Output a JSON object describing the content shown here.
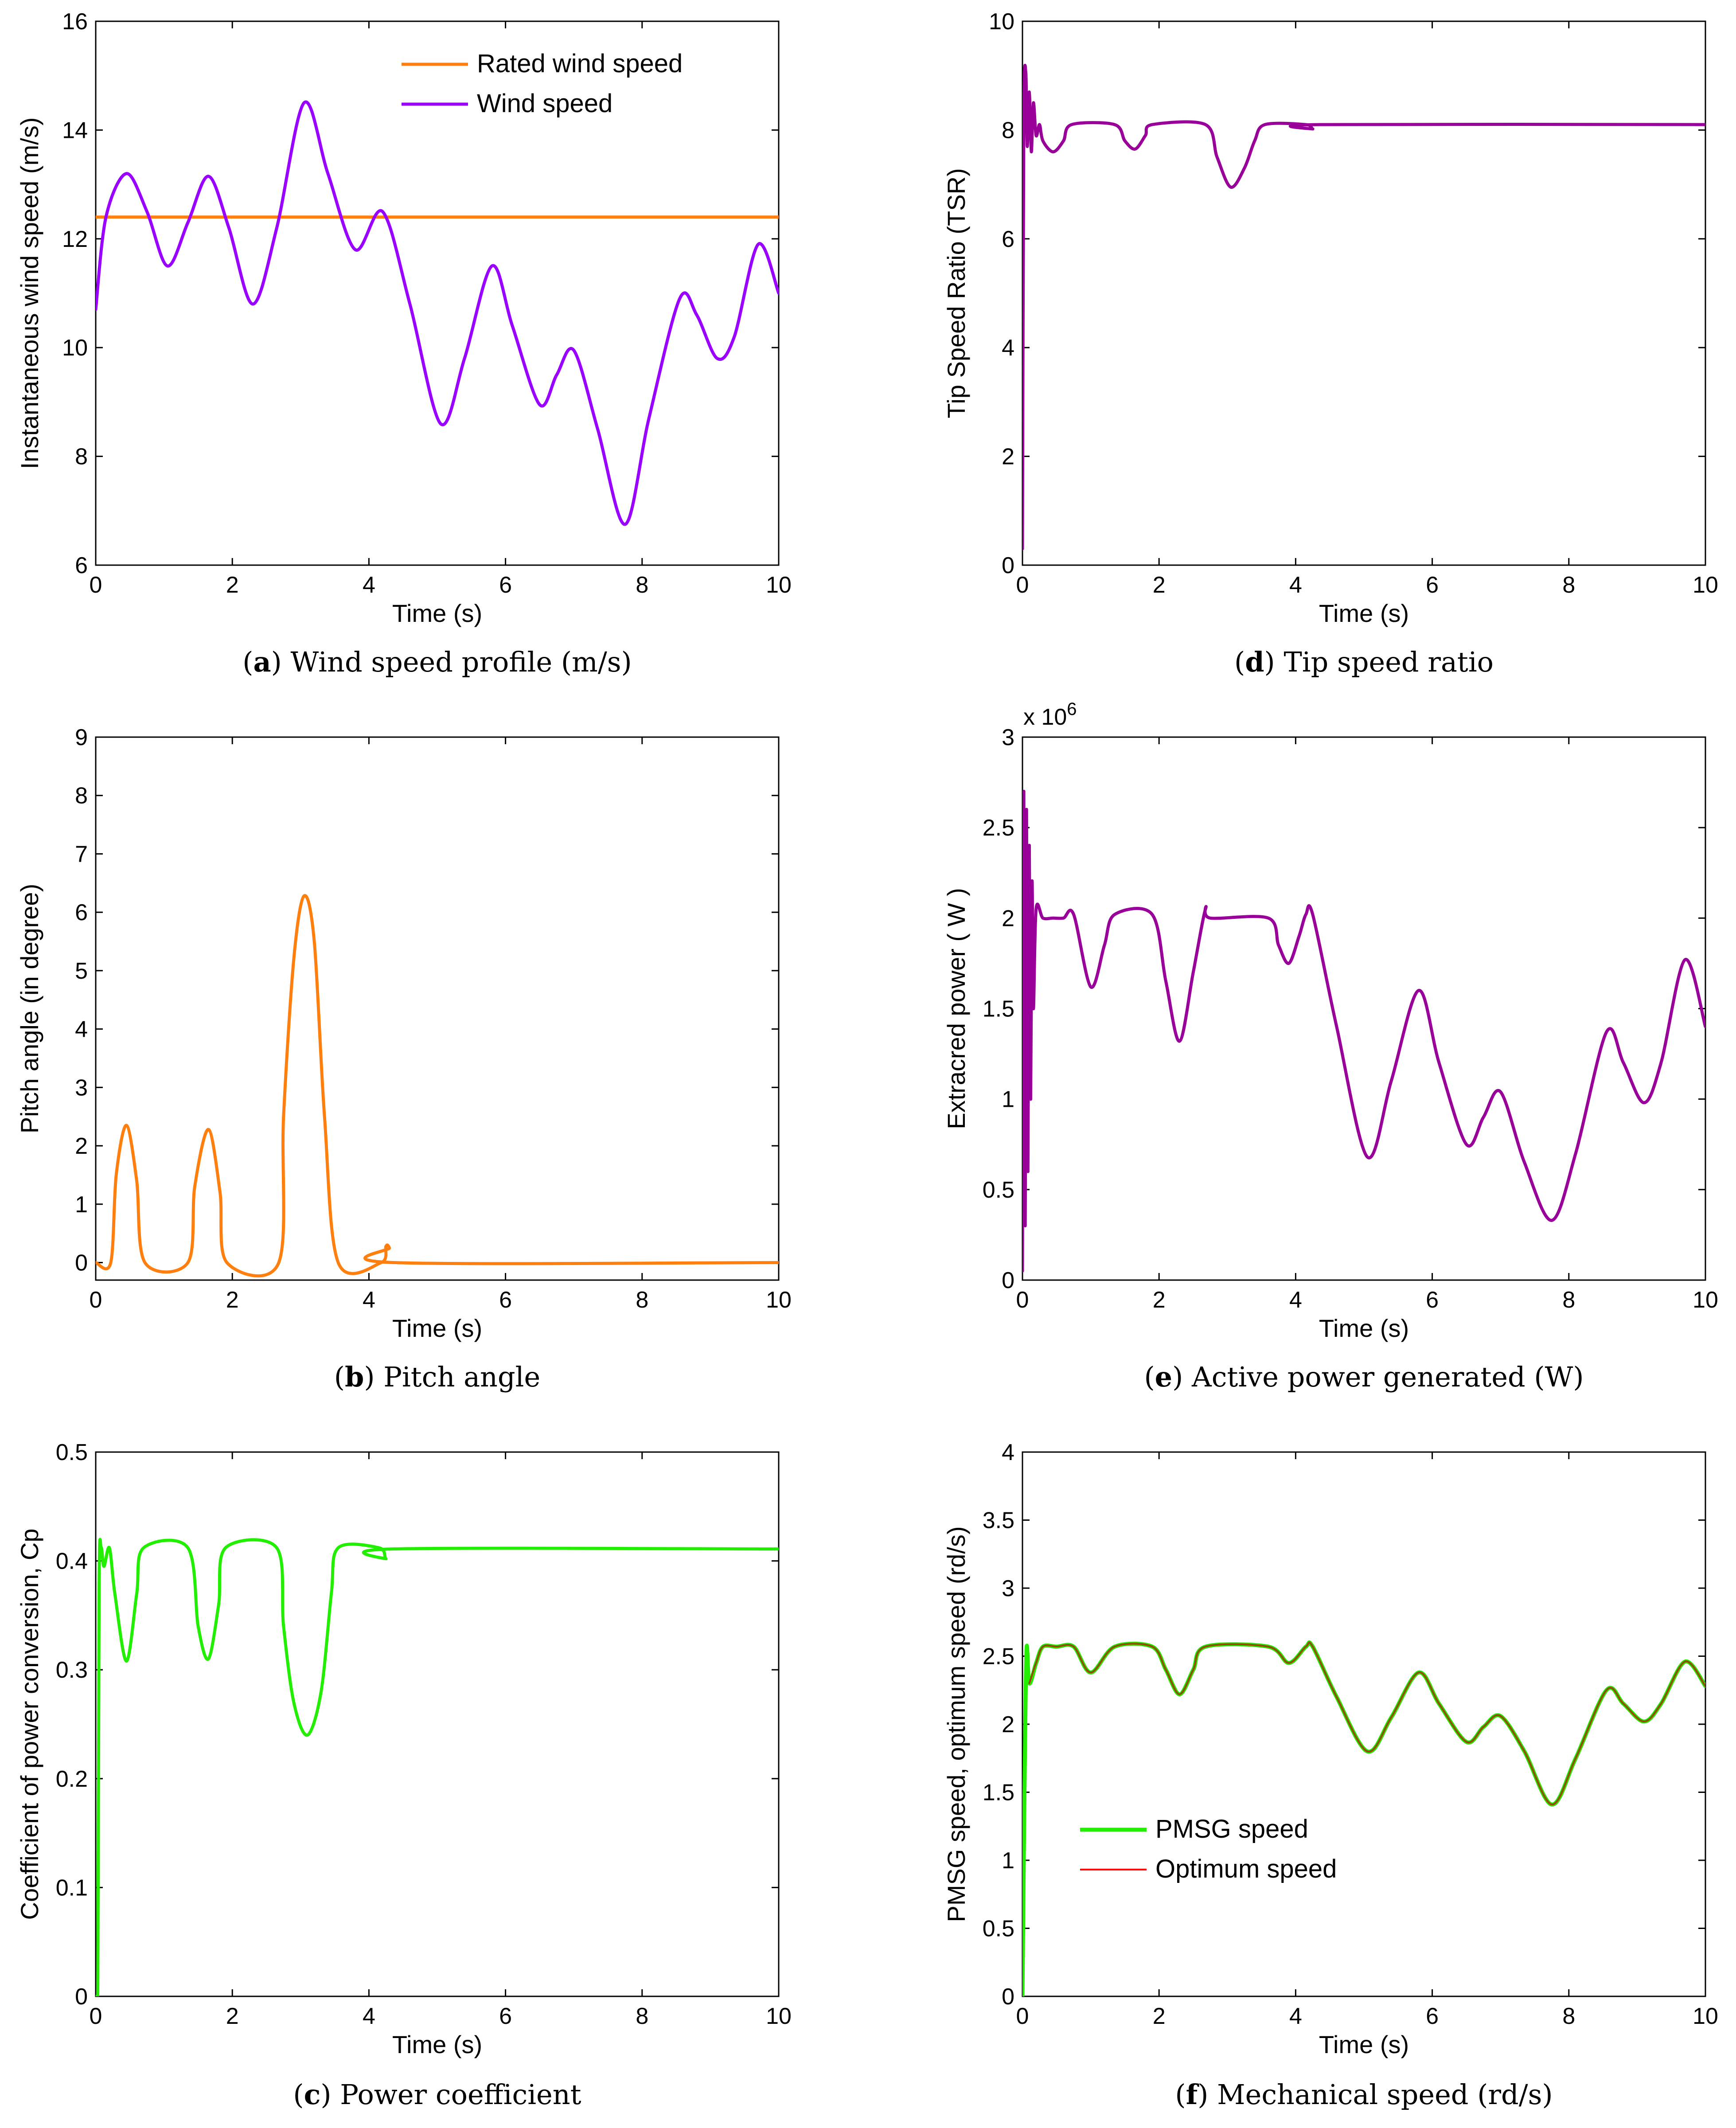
{
  "chart_data": [
    {
      "id": "a",
      "type": "line",
      "caption_letter": "a",
      "caption_text": "Wind speed profile (m/s)",
      "xlabel": "Time (s)",
      "ylabel": "Instantaneous wind speed (m/s)",
      "xlim": [
        0,
        10
      ],
      "ylim": [
        6,
        16
      ],
      "xticks": [
        0,
        2,
        4,
        6,
        8,
        10
      ],
      "yticks": [
        6,
        8,
        10,
        12,
        14,
        16
      ],
      "legend_position": "top-right",
      "series": [
        {
          "name": "Rated wind speed",
          "color": "#ff7f0e",
          "width": 7,
          "legend": true,
          "x": [
            0,
            10
          ],
          "y": [
            12.4,
            12.4
          ]
        },
        {
          "name": "Wind speed",
          "color": "#9900ff",
          "width": 7,
          "legend": true,
          "x": [
            0,
            0.15,
            0.45,
            0.75,
            1.05,
            1.35,
            1.65,
            1.95,
            2.3,
            2.65,
            3.05,
            3.4,
            3.8,
            4.2,
            4.6,
            5.05,
            5.4,
            5.8,
            6.1,
            6.5,
            6.75,
            7.0,
            7.35,
            7.75,
            8.1,
            8.55,
            8.8,
            9.1,
            9.35,
            9.7,
            10.0
          ],
          "y": [
            10.7,
            12.4,
            13.2,
            12.5,
            11.5,
            12.3,
            13.15,
            12.2,
            10.8,
            12.2,
            14.5,
            13.2,
            11.8,
            12.5,
            10.8,
            8.6,
            9.8,
            11.5,
            10.4,
            8.95,
            9.5,
            9.95,
            8.5,
            6.75,
            8.7,
            10.9,
            10.6,
            9.8,
            10.2,
            11.9,
            11.0
          ]
        }
      ]
    },
    {
      "id": "b",
      "type": "line",
      "caption_letter": "b",
      "caption_text": "Pitch angle",
      "xlabel": "Time (s)",
      "ylabel": "Pitch angle (in degree)",
      "xlim": [
        0,
        10
      ],
      "ylim": [
        -0.3,
        9
      ],
      "xticks": [
        0,
        2,
        4,
        6,
        8,
        10
      ],
      "yticks": [
        0,
        1,
        2,
        3,
        4,
        5,
        6,
        7,
        8,
        9
      ],
      "series": [
        {
          "name": "Pitch angle",
          "color": "#ff7f0e",
          "width": 7,
          "legend": false,
          "x": [
            0,
            0.22,
            0.3,
            0.45,
            0.6,
            0.72,
            1.35,
            1.45,
            1.65,
            1.82,
            1.92,
            2.68,
            2.75,
            2.9,
            3.05,
            3.2,
            3.35,
            3.55,
            4.18,
            4.25,
            4.3,
            4.36,
            10
          ],
          "y": [
            0,
            0,
            1.5,
            2.35,
            1.4,
            0,
            0,
            1.3,
            2.28,
            1.2,
            0,
            0,
            2.5,
            5.2,
            6.28,
            5.5,
            2.5,
            0,
            0,
            0.28,
            0.25,
            0,
            0
          ]
        }
      ]
    },
    {
      "id": "c",
      "type": "line",
      "caption_letter": "c",
      "caption_text": "Power coefficient",
      "xlabel": "Time (s)",
      "ylabel": "Coefficient of power conversion, Cp",
      "xlim": [
        0,
        10
      ],
      "ylim": [
        0,
        0.5
      ],
      "xticks": [
        0,
        2,
        4,
        6,
        8,
        10
      ],
      "yticks": [
        0,
        0.1,
        0.2,
        0.3,
        0.4,
        0.5
      ],
      "series": [
        {
          "name": "Cp",
          "color": "#22ee00",
          "width": 7,
          "legend": false,
          "x": [
            0,
            0.03,
            0.05,
            0.08,
            0.12,
            0.2,
            0.28,
            0.45,
            0.6,
            0.7,
            1.35,
            1.5,
            1.65,
            1.8,
            1.9,
            2.65,
            2.75,
            2.9,
            3.1,
            3.3,
            3.45,
            3.55,
            4.15,
            4.25,
            4.35,
            10
          ],
          "y": [
            0,
            0.002,
            0.38,
            0.412,
            0.395,
            0.412,
            0.37,
            0.308,
            0.37,
            0.412,
            0.412,
            0.34,
            0.31,
            0.36,
            0.412,
            0.412,
            0.34,
            0.27,
            0.24,
            0.28,
            0.37,
            0.412,
            0.412,
            0.402,
            0.411,
            0.411
          ]
        }
      ]
    },
    {
      "id": "d",
      "type": "line",
      "caption_letter": "d",
      "caption_text": "Tip speed ratio",
      "xlabel": "Time (s)",
      "ylabel": "Tip Speed Ratio (TSR)",
      "xlim": [
        0,
        10
      ],
      "ylim": [
        0,
        10
      ],
      "xticks": [
        0,
        2,
        4,
        6,
        8,
        10
      ],
      "yticks": [
        0,
        2,
        4,
        6,
        8,
        10
      ],
      "series": [
        {
          "name": "TSR",
          "color": "#990099",
          "width": 7,
          "legend": false,
          "x": [
            0,
            0.02,
            0.05,
            0.07,
            0.1,
            0.13,
            0.16,
            0.2,
            0.25,
            0.3,
            0.45,
            0.6,
            0.72,
            1.35,
            1.5,
            1.65,
            1.8,
            1.9,
            2.68,
            2.85,
            3.05,
            3.25,
            3.4,
            3.55,
            4.15,
            4.25,
            4.35,
            10
          ],
          "y": [
            0.3,
            8.2,
            9.05,
            7.7,
            8.7,
            7.6,
            8.5,
            7.9,
            8.1,
            7.8,
            7.6,
            7.8,
            8.1,
            8.1,
            7.8,
            7.65,
            7.9,
            8.1,
            8.1,
            7.5,
            6.95,
            7.3,
            7.8,
            8.1,
            8.1,
            8.02,
            8.1,
            8.1
          ]
        }
      ]
    },
    {
      "id": "e",
      "type": "line",
      "caption_letter": "e",
      "caption_text": "Active power generated (W)",
      "xlabel": "Time (s)",
      "ylabel": "Extracred power ( W )",
      "exponent_label": "x 10",
      "exponent_power": "6",
      "xlim": [
        0,
        10
      ],
      "ylim": [
        0,
        3
      ],
      "xticks": [
        0,
        2,
        4,
        6,
        8,
        10
      ],
      "yticks": [
        0,
        0.5,
        1,
        1.5,
        2,
        2.5,
        3
      ],
      "series": [
        {
          "name": "Extracted power",
          "color": "#990099",
          "width": 7,
          "legend": false,
          "x": [
            0,
            0.02,
            0.04,
            0.06,
            0.08,
            0.1,
            0.12,
            0.14,
            0.16,
            0.2,
            0.3,
            0.45,
            0.6,
            0.75,
            1.0,
            1.2,
            1.35,
            1.9,
            2.1,
            2.3,
            2.5,
            2.68,
            2.75,
            3.6,
            3.75,
            3.9,
            4.05,
            4.15,
            4.25,
            4.6,
            5.05,
            5.4,
            5.8,
            6.1,
            6.5,
            6.75,
            7.0,
            7.35,
            7.75,
            8.1,
            8.55,
            8.8,
            9.1,
            9.35,
            9.7,
            10.0
          ],
          "y": [
            0.05,
            2.7,
            0.3,
            2.6,
            0.6,
            2.4,
            1.0,
            2.2,
            1.5,
            2.05,
            2.0,
            2.0,
            2.0,
            2.02,
            1.62,
            1.85,
            2.02,
            2.02,
            1.65,
            1.32,
            1.7,
            2.05,
            2.0,
            2.0,
            1.85,
            1.75,
            1.9,
            2.02,
            2.02,
            1.4,
            0.68,
            1.1,
            1.6,
            1.2,
            0.75,
            0.9,
            1.04,
            0.65,
            0.33,
            0.7,
            1.37,
            1.2,
            0.98,
            1.2,
            1.77,
            1.4
          ]
        }
      ]
    },
    {
      "id": "f",
      "type": "line",
      "caption_letter": "f",
      "caption_text": "Mechanical speed (rd/s)",
      "xlabel": "Time (s)",
      "ylabel": "PMSG speed, optimum speed (rd/s)",
      "xlim": [
        0,
        10
      ],
      "ylim": [
        0,
        4
      ],
      "xticks": [
        0,
        2,
        4,
        6,
        8,
        10
      ],
      "yticks": [
        0,
        0.5,
        1,
        1.5,
        2,
        2.5,
        3,
        3.5,
        4
      ],
      "legend_position": "center-left",
      "series": [
        {
          "name": "PMSG speed",
          "color": "#22ee00",
          "width": 9,
          "legend": true,
          "x": [
            0,
            0.03,
            0.06,
            0.1,
            0.2,
            0.3,
            0.5,
            0.75,
            1.0,
            1.35,
            1.9,
            2.1,
            2.3,
            2.5,
            2.68,
            3.6,
            3.9,
            4.15,
            4.25,
            4.6,
            5.05,
            5.4,
            5.8,
            6.1,
            6.5,
            6.75,
            7.0,
            7.35,
            7.75,
            8.1,
            8.55,
            8.8,
            9.1,
            9.35,
            9.7,
            10.0
          ],
          "y": [
            0.0,
            1.5,
            2.55,
            2.3,
            2.45,
            2.57,
            2.57,
            2.57,
            2.38,
            2.57,
            2.57,
            2.4,
            2.22,
            2.4,
            2.57,
            2.57,
            2.45,
            2.57,
            2.57,
            2.2,
            1.8,
            2.05,
            2.38,
            2.15,
            1.87,
            1.98,
            2.06,
            1.8,
            1.41,
            1.75,
            2.25,
            2.15,
            2.02,
            2.15,
            2.46,
            2.28
          ]
        },
        {
          "name": "Optimum speed",
          "color": "#ff0000",
          "width": 4,
          "legend": true,
          "x": [
            0.1,
            0.2,
            0.3,
            0.5,
            0.75,
            1.0,
            1.35,
            1.9,
            2.1,
            2.3,
            2.5,
            2.68,
            3.6,
            3.9,
            4.15,
            4.25,
            4.6,
            5.05,
            5.4,
            5.8,
            6.1,
            6.5,
            6.75,
            7.0,
            7.35,
            7.75,
            8.1,
            8.55,
            8.8,
            9.1,
            9.35,
            9.7,
            10.0
          ],
          "y": [
            2.3,
            2.45,
            2.57,
            2.57,
            2.57,
            2.38,
            2.57,
            2.57,
            2.4,
            2.22,
            2.4,
            2.57,
            2.57,
            2.45,
            2.57,
            2.57,
            2.2,
            1.8,
            2.05,
            2.38,
            2.15,
            1.87,
            1.98,
            2.06,
            1.8,
            1.41,
            1.75,
            2.25,
            2.15,
            2.02,
            2.15,
            2.46,
            2.28
          ]
        },
        {
          "name": "PMSG speed overlay",
          "color": "#7a5c00",
          "width": 3,
          "legend": false,
          "overlay": true,
          "x": [
            0.1,
            0.2,
            0.3,
            0.5,
            0.75,
            1.0,
            1.35,
            1.9,
            2.1,
            2.3,
            2.5,
            2.68,
            3.6,
            3.9,
            4.15,
            4.25,
            4.6,
            5.05,
            5.4,
            5.8,
            6.1,
            6.5,
            6.75,
            7.0,
            7.35,
            7.75,
            8.1,
            8.55,
            8.8,
            9.1,
            9.35,
            9.7,
            10.0
          ],
          "y": [
            2.3,
            2.45,
            2.57,
            2.57,
            2.57,
            2.38,
            2.57,
            2.57,
            2.4,
            2.22,
            2.4,
            2.57,
            2.57,
            2.45,
            2.57,
            2.57,
            2.2,
            1.8,
            2.05,
            2.38,
            2.15,
            1.87,
            1.98,
            2.06,
            1.8,
            1.41,
            1.75,
            2.25,
            2.15,
            2.02,
            2.15,
            2.46,
            2.28
          ]
        }
      ]
    }
  ]
}
